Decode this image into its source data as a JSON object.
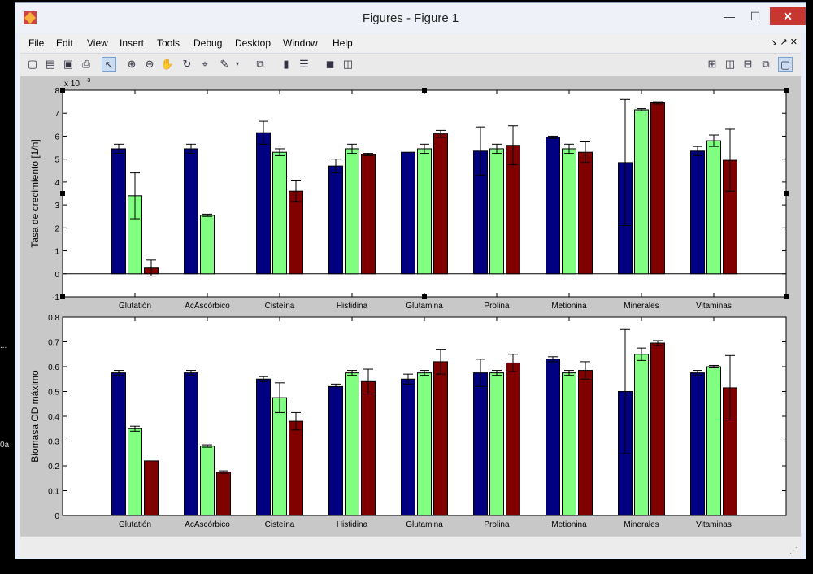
{
  "window": {
    "title": "Figures - Figure 1"
  },
  "window_controls": {
    "minimize": "—",
    "maximize": "☐",
    "close": "✕"
  },
  "desktop_fragments": [
    "...",
    "0a"
  ],
  "menu": [
    "File",
    "Edit",
    "View",
    "Insert",
    "Tools",
    "Debug",
    "Desktop",
    "Window",
    "Help"
  ],
  "menu_right": "↘ ↗ ✕",
  "toolbar": {
    "buttons": [
      "new-figure-icon",
      "open-file-icon",
      "save-icon",
      "print-icon",
      "pointer-arrow-icon",
      "zoom-in-icon",
      "zoom-out-icon",
      "pan-hand-icon",
      "rotate-3d-icon",
      "data-cursor-icon",
      "brush-icon",
      "brush-dropdown-icon",
      "link-plot-icon",
      "colorbar-icon",
      "legend-icon",
      "hide-plot-tools-icon",
      "show-plot-tools-icon"
    ],
    "layout_buttons": [
      "tile-grid-icon",
      "tile-left-right-icon",
      "tile-top-bottom-icon",
      "float-icon",
      "maximize-figure-icon"
    ]
  },
  "colors": {
    "series1": "#000080",
    "series2": "#80ff80",
    "series3": "#800000"
  },
  "chart_data": [
    {
      "type": "bar",
      "categories": [
        "Glutatión",
        "AcAscórbico",
        "Cisteína",
        "Histidina",
        "Glutamina",
        "Prolina",
        "Metionina",
        "Minerales",
        "Vitaminas"
      ],
      "ylabel": "Tasa de crecimiento [1/h]",
      "exponent_label": "x 10",
      "exponent_power": "-3",
      "ylim": [
        -1,
        8
      ],
      "yticks": [
        "-1",
        "0",
        "1",
        "2",
        "3",
        "4",
        "5",
        "6",
        "7",
        "8"
      ],
      "series": [
        {
          "values": [
            5.45,
            5.45,
            6.15,
            4.7,
            5.3,
            5.35,
            5.95,
            4.85,
            5.35
          ],
          "err": [
            0.2,
            0.2,
            0.5,
            0.3,
            0,
            1.05,
            0.05,
            2.75,
            0.2
          ]
        },
        {
          "values": [
            3.4,
            2.55,
            5.3,
            5.45,
            5.45,
            5.45,
            5.45,
            7.15,
            5.8
          ],
          "err": [
            1.0,
            0.05,
            0.15,
            0.2,
            0.2,
            0.2,
            0.2,
            0.05,
            0.25
          ]
        },
        {
          "values": [
            0.25,
            0,
            3.6,
            5.2,
            6.1,
            5.6,
            5.3,
            7.45,
            4.95
          ],
          "err": [
            0.35,
            0,
            0.45,
            0.05,
            0.15,
            0.85,
            0.45,
            0.05,
            1.35
          ]
        }
      ],
      "grid": false
    },
    {
      "type": "bar",
      "categories": [
        "Glutatión",
        "AcAscórbico",
        "Cisteína",
        "Histidina",
        "Glutamina",
        "Prolina",
        "Metionina",
        "Minerales",
        "Vitaminas"
      ],
      "ylabel": "Biomasa OD máximo",
      "ylim": [
        0,
        0.8
      ],
      "yticks": [
        "0",
        "0.1",
        "0.2",
        "0.3",
        "0.4",
        "0.5",
        "0.6",
        "0.7",
        "0.8"
      ],
      "series": [
        {
          "values": [
            0.575,
            0.575,
            0.55,
            0.52,
            0.55,
            0.575,
            0.63,
            0.5,
            0.575
          ],
          "err": [
            0.01,
            0.01,
            0.01,
            0.01,
            0.02,
            0.055,
            0.01,
            0.25,
            0.01
          ]
        },
        {
          "values": [
            0.35,
            0.28,
            0.475,
            0.575,
            0.575,
            0.575,
            0.575,
            0.65,
            0.6
          ],
          "err": [
            0.01,
            0.005,
            0.06,
            0.01,
            0.01,
            0.01,
            0.01,
            0.025,
            0.005
          ]
        },
        {
          "values": [
            0.22,
            0.175,
            0.38,
            0.54,
            0.62,
            0.615,
            0.585,
            0.695,
            0.515
          ],
          "err": [
            0,
            0.005,
            0.035,
            0.05,
            0.05,
            0.035,
            0.035,
            0.01,
            0.13
          ]
        }
      ],
      "grid": false
    }
  ]
}
